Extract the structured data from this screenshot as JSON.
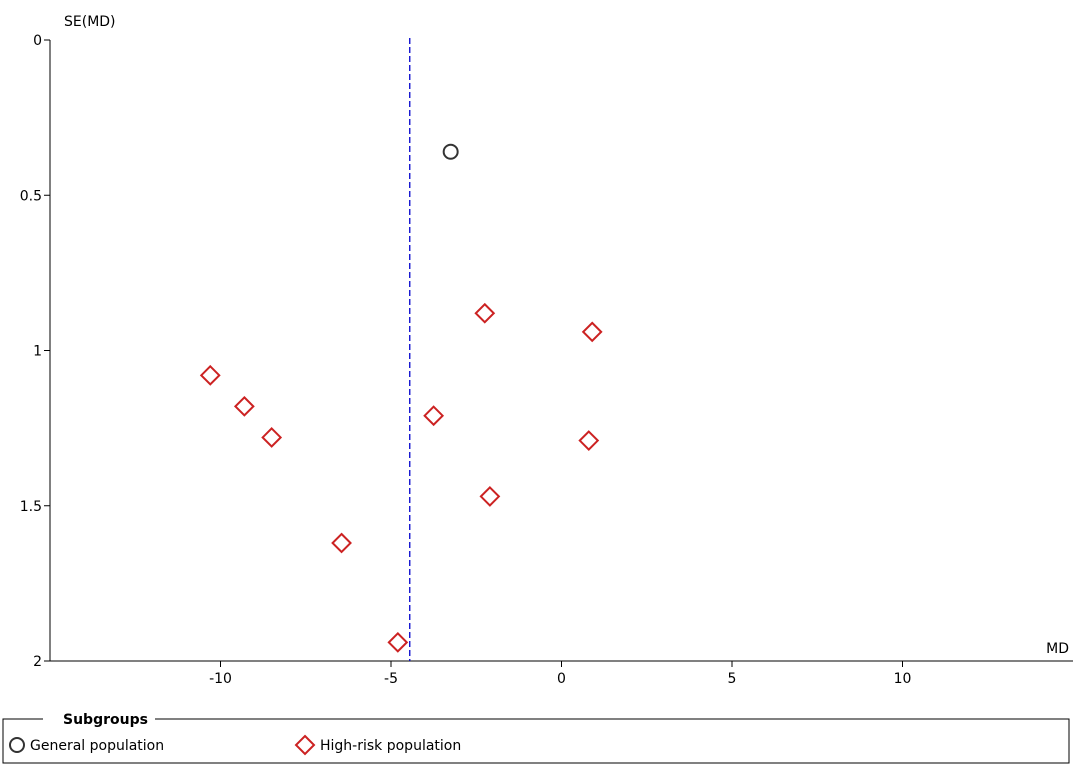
{
  "chart_data": {
    "type": "scatter",
    "title": "",
    "xlabel": "MD",
    "ylabel": "SE(MD)",
    "xlim": [
      -15,
      15
    ],
    "ylim": [
      2,
      0
    ],
    "y_inverted": true,
    "x_ticks": [
      -10,
      -5,
      0,
      5,
      10
    ],
    "y_ticks": [
      0,
      0.5,
      1,
      1.5,
      2
    ],
    "x_tick_labels": [
      "-10",
      "-5",
      "0",
      "5",
      "10"
    ],
    "y_tick_labels": [
      "0",
      "0.5",
      "1",
      "1.5",
      "2"
    ],
    "reference_line": {
      "x": -4.45,
      "style": "dashed",
      "color": "#0000cc"
    },
    "grid": false,
    "series": [
      {
        "name": "General population",
        "marker": "circle",
        "color": "#333333",
        "points": [
          {
            "x": -3.25,
            "y": 0.36
          }
        ]
      },
      {
        "name": "High-risk population",
        "marker": "diamond",
        "color": "#cc2222",
        "points": [
          {
            "x": -2.25,
            "y": 0.88
          },
          {
            "x": 0.9,
            "y": 0.94
          },
          {
            "x": -10.3,
            "y": 1.08
          },
          {
            "x": -9.3,
            "y": 1.18
          },
          {
            "x": -3.75,
            "y": 1.21
          },
          {
            "x": -8.5,
            "y": 1.28
          },
          {
            "x": 0.8,
            "y": 1.29
          },
          {
            "x": -2.1,
            "y": 1.47
          },
          {
            "x": -6.45,
            "y": 1.62
          },
          {
            "x": -4.8,
            "y": 1.94
          }
        ]
      }
    ],
    "legend": {
      "title": "Subgroups",
      "placement": "bottom"
    }
  }
}
